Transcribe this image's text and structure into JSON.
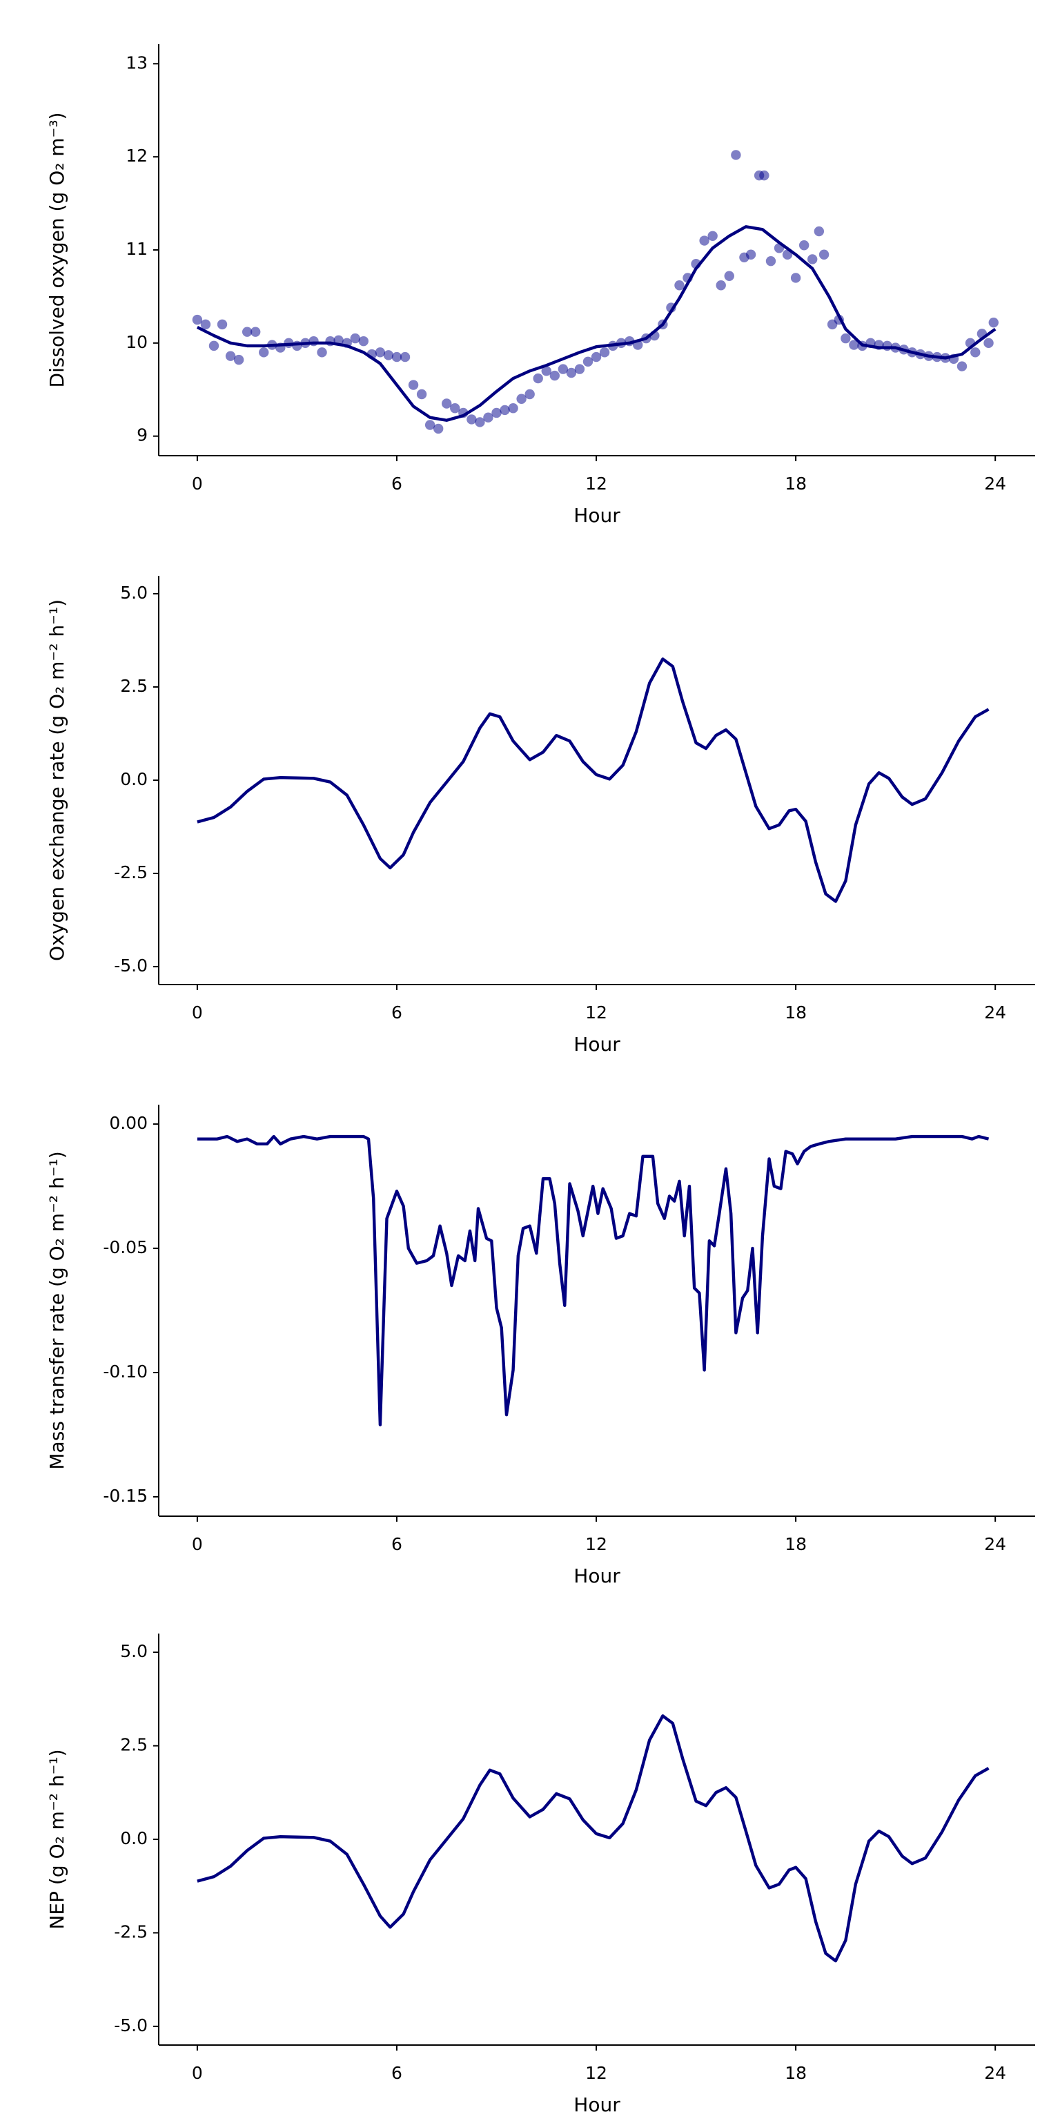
{
  "chart_data": [
    {
      "type": "scatter",
      "x_label": "Hour",
      "y_label": "Dissolved oxygen (g O₂ m⁻³)",
      "xlim": [
        -1.16,
        25.2
      ],
      "ylim": [
        8.79,
        13.21
      ],
      "xticks": [
        0,
        6,
        12,
        18,
        24
      ],
      "yticks": [
        9,
        10,
        11,
        12,
        13
      ],
      "series": [
        {
          "type": "scatter",
          "color": "#00008b",
          "alpha": 0.5,
          "x": [
            0,
            0.25,
            0.5,
            0.75,
            1,
            1.25,
            1.5,
            1.75,
            2,
            2.25,
            2.5,
            2.75,
            3,
            3.25,
            3.5,
            3.75,
            4,
            4.25,
            4.5,
            4.75,
            5,
            5.25,
            5.5,
            5.75,
            6,
            6.25,
            6.5,
            6.75,
            7,
            7.25,
            7.5,
            7.75,
            8,
            8.25,
            8.5,
            8.75,
            9,
            9.25,
            9.5,
            9.75,
            10,
            10.25,
            10.5,
            10.75,
            11,
            11.25,
            11.5,
            11.75,
            12,
            12.25,
            12.5,
            12.75,
            13,
            13.25,
            13.5,
            13.75,
            14,
            14.25,
            14.5,
            14.75,
            15,
            15.25,
            15.5,
            15.75,
            16,
            16.2,
            16.45,
            16.65,
            16.9,
            17.05,
            17.25,
            17.5,
            17.75,
            18,
            18.25,
            18.5,
            18.7,
            18.85,
            19.1,
            19.3,
            19.5,
            19.75,
            20,
            20.25,
            20.5,
            20.75,
            21,
            21.25,
            21.5,
            21.75,
            22,
            22.25,
            22.5,
            22.75,
            23,
            23.25,
            23.4,
            23.6,
            23.8,
            23.95
          ],
          "values": [
            10.25,
            10.2,
            9.97,
            10.2,
            9.86,
            9.82,
            10.12,
            10.12,
            9.9,
            9.98,
            9.95,
            10.0,
            9.97,
            10.0,
            10.02,
            9.9,
            10.02,
            10.03,
            10.0,
            10.05,
            10.02,
            9.88,
            9.9,
            9.87,
            9.85,
            9.85,
            9.55,
            9.45,
            9.12,
            9.08,
            9.35,
            9.3,
            9.25,
            9.18,
            9.15,
            9.2,
            9.25,
            9.28,
            9.3,
            9.4,
            9.45,
            9.62,
            9.7,
            9.65,
            9.72,
            9.68,
            9.72,
            9.8,
            9.85,
            9.9,
            9.97,
            10.0,
            10.02,
            9.98,
            10.05,
            10.08,
            10.2,
            10.38,
            10.62,
            10.7,
            10.85,
            11.1,
            11.15,
            10.62,
            10.72,
            12.02,
            10.92,
            10.95,
            11.8,
            11.8,
            10.88,
            11.02,
            10.95,
            10.7,
            11.05,
            10.9,
            11.2,
            10.95,
            10.2,
            10.25,
            10.05,
            9.98,
            9.97,
            10.0,
            9.98,
            9.97,
            9.95,
            9.93,
            9.9,
            9.88,
            9.86,
            9.85,
            9.84,
            9.83,
            9.75,
            10.0,
            9.9,
            10.1,
            10.0,
            10.22
          ]
        },
        {
          "type": "line",
          "color": "#000080",
          "x": [
            0,
            0.5,
            1,
            1.5,
            2,
            2.5,
            3,
            3.5,
            4,
            4.5,
            5,
            5.5,
            6,
            6.5,
            7,
            7.5,
            8,
            8.5,
            9,
            9.5,
            10,
            10.5,
            11,
            11.5,
            12,
            12.5,
            13,
            13.5,
            14,
            14.5,
            15,
            15.5,
            16,
            16.5,
            17,
            17.5,
            18,
            18.5,
            19,
            19.5,
            20,
            20.5,
            21,
            21.5,
            22,
            22.5,
            23,
            23.5,
            24
          ],
          "values": [
            10.17,
            10.08,
            10.0,
            9.97,
            9.97,
            9.98,
            9.99,
            10.0,
            10.0,
            9.97,
            9.9,
            9.78,
            9.55,
            9.32,
            9.2,
            9.17,
            9.22,
            9.33,
            9.48,
            9.62,
            9.7,
            9.76,
            9.83,
            9.9,
            9.96,
            9.98,
            10.0,
            10.05,
            10.2,
            10.48,
            10.8,
            11.02,
            11.15,
            11.25,
            11.22,
            11.08,
            10.95,
            10.8,
            10.5,
            10.15,
            9.98,
            9.95,
            9.95,
            9.9,
            9.86,
            9.84,
            9.88,
            10.02,
            10.15
          ]
        }
      ]
    },
    {
      "type": "line",
      "x_label": "Hour",
      "y_label": "Oxygen exchange rate (g O₂ m⁻² h⁻¹)",
      "xlim": [
        -1.16,
        25.2
      ],
      "ylim": [
        -5.48,
        5.48
      ],
      "xticks": [
        0,
        6,
        12,
        18,
        24
      ],
      "yticks": [
        {
          "value": -5,
          "label": "-5.0"
        },
        {
          "value": -2.5,
          "label": "-2.5"
        },
        {
          "value": 0,
          "label": "0.0"
        },
        {
          "value": 2.5,
          "label": "2.5"
        },
        {
          "value": 5,
          "label": "5.0"
        }
      ],
      "series": [
        {
          "type": "line",
          "color": "#000080",
          "x": [
            0,
            0.5,
            1,
            1.5,
            2,
            2.5,
            3,
            3.5,
            4,
            4.5,
            5,
            5.5,
            5.8,
            6.2,
            6.5,
            7,
            7.5,
            8,
            8.5,
            8.8,
            9.1,
            9.5,
            10,
            10.4,
            10.8,
            11.2,
            11.6,
            12,
            12.4,
            12.8,
            13.2,
            13.6,
            14,
            14.3,
            14.6,
            15,
            15.3,
            15.6,
            15.9,
            16.2,
            16.5,
            16.8,
            17.2,
            17.5,
            17.8,
            18,
            18.3,
            18.6,
            18.9,
            19.2,
            19.5,
            19.8,
            20.2,
            20.5,
            20.8,
            21.2,
            21.5,
            21.9,
            22.4,
            22.9,
            23.4,
            23.8
          ],
          "values": [
            -1.12,
            -1.0,
            -0.72,
            -0.3,
            0.03,
            0.07,
            0.06,
            0.05,
            -0.05,
            -0.4,
            -1.2,
            -2.1,
            -2.35,
            -2.0,
            -1.4,
            -0.6,
            -0.05,
            0.5,
            1.4,
            1.78,
            1.7,
            1.05,
            0.55,
            0.75,
            1.2,
            1.05,
            0.5,
            0.15,
            0.03,
            0.4,
            1.3,
            2.6,
            3.25,
            3.05,
            2.1,
            1.0,
            0.85,
            1.2,
            1.35,
            1.1,
            0.2,
            -0.7,
            -1.3,
            -1.2,
            -0.82,
            -0.78,
            -1.1,
            -2.2,
            -3.05,
            -3.25,
            -2.7,
            -1.2,
            -0.1,
            0.2,
            0.05,
            -0.45,
            -0.65,
            -0.5,
            0.2,
            1.05,
            1.7,
            1.9
          ]
        }
      ]
    },
    {
      "type": "line",
      "x_label": "Hour",
      "y_label": "Mass transfer rate (g O₂ m⁻² h⁻¹)",
      "xlim": [
        -1.16,
        25.2
      ],
      "ylim": [
        -0.1578,
        0.0078
      ],
      "xticks": [
        0,
        6,
        12,
        18,
        24
      ],
      "yticks": [
        {
          "value": -0.15,
          "label": "-0.15"
        },
        {
          "value": -0.1,
          "label": "-0.10"
        },
        {
          "value": -0.05,
          "label": "-0.05"
        },
        {
          "value": 0,
          "label": "0.00"
        }
      ],
      "series": [
        {
          "type": "line",
          "color": "#000080",
          "x": [
            0,
            0.3,
            0.6,
            0.9,
            1.2,
            1.5,
            1.8,
            2.1,
            2.3,
            2.5,
            2.8,
            3.2,
            3.6,
            4.0,
            4.5,
            5.0,
            5.15,
            5.3,
            5.5,
            5.7,
            6.0,
            6.2,
            6.35,
            6.6,
            6.9,
            7.1,
            7.3,
            7.5,
            7.65,
            7.85,
            8.05,
            8.2,
            8.35,
            8.45,
            8.7,
            8.85,
            9.0,
            9.15,
            9.3,
            9.5,
            9.65,
            9.8,
            10.0,
            10.2,
            10.4,
            10.6,
            10.75,
            10.9,
            11.05,
            11.2,
            11.45,
            11.6,
            11.9,
            12.05,
            12.2,
            12.45,
            12.6,
            12.8,
            13.0,
            13.2,
            13.4,
            13.7,
            13.85,
            14.05,
            14.2,
            14.35,
            14.5,
            14.65,
            14.8,
            14.95,
            15.1,
            15.25,
            15.4,
            15.55,
            15.7,
            15.9,
            16.05,
            16.2,
            16.4,
            16.55,
            16.7,
            16.85,
            17.0,
            17.2,
            17.35,
            17.55,
            17.7,
            17.9,
            18.05,
            18.25,
            18.45,
            18.7,
            19.0,
            19.5,
            20.0,
            20.5,
            21.0,
            21.5,
            22.0,
            22.5,
            23.0,
            23.3,
            23.5,
            23.8
          ],
          "values": [
            -0.006,
            -0.006,
            -0.006,
            -0.005,
            -0.007,
            -0.006,
            -0.008,
            -0.008,
            -0.005,
            -0.008,
            -0.006,
            -0.005,
            -0.006,
            -0.005,
            -0.005,
            -0.005,
            -0.006,
            -0.03,
            -0.121,
            -0.038,
            -0.027,
            -0.033,
            -0.05,
            -0.056,
            -0.055,
            -0.053,
            -0.041,
            -0.052,
            -0.065,
            -0.053,
            -0.055,
            -0.043,
            -0.055,
            -0.034,
            -0.046,
            -0.047,
            -0.074,
            -0.082,
            -0.117,
            -0.099,
            -0.053,
            -0.042,
            -0.041,
            -0.052,
            -0.022,
            -0.022,
            -0.032,
            -0.056,
            -0.073,
            -0.024,
            -0.035,
            -0.045,
            -0.025,
            -0.036,
            -0.026,
            -0.034,
            -0.046,
            -0.045,
            -0.036,
            -0.037,
            -0.013,
            -0.013,
            -0.032,
            -0.038,
            -0.029,
            -0.031,
            -0.023,
            -0.045,
            -0.025,
            -0.066,
            -0.068,
            -0.099,
            -0.047,
            -0.049,
            -0.036,
            -0.018,
            -0.036,
            -0.084,
            -0.07,
            -0.067,
            -0.05,
            -0.084,
            -0.045,
            -0.014,
            -0.025,
            -0.026,
            -0.011,
            -0.012,
            -0.016,
            -0.011,
            -0.009,
            -0.008,
            -0.007,
            -0.006,
            -0.006,
            -0.006,
            -0.006,
            -0.005,
            -0.005,
            -0.005,
            -0.005,
            -0.006,
            -0.005,
            -0.006
          ]
        }
      ]
    },
    {
      "type": "line",
      "x_label": "Hour",
      "y_label": "NEP (g O₂ m⁻² h⁻¹)",
      "xlim": [
        -1.16,
        25.2
      ],
      "ylim": [
        -5.5,
        5.5
      ],
      "xticks": [
        0,
        6,
        12,
        18,
        24
      ],
      "yticks": [
        {
          "value": -5,
          "label": "-5.0"
        },
        {
          "value": -2.5,
          "label": "-2.5"
        },
        {
          "value": 0,
          "label": "0.0"
        },
        {
          "value": 2.5,
          "label": "2.5"
        },
        {
          "value": 5,
          "label": "5.0"
        }
      ],
      "series": [
        {
          "type": "line",
          "color": "#000080",
          "x": [
            0,
            0.5,
            1,
            1.5,
            2,
            2.5,
            3,
            3.5,
            4,
            4.5,
            5,
            5.5,
            5.8,
            6.2,
            6.5,
            7,
            7.5,
            8,
            8.5,
            8.8,
            9.1,
            9.5,
            10,
            10.4,
            10.8,
            11.2,
            11.6,
            12,
            12.4,
            12.8,
            13.2,
            13.6,
            14,
            14.3,
            14.6,
            15,
            15.3,
            15.6,
            15.9,
            16.2,
            16.5,
            16.8,
            17.2,
            17.5,
            17.8,
            18,
            18.3,
            18.6,
            18.9,
            19.2,
            19.5,
            19.8,
            20.2,
            20.5,
            20.8,
            21.2,
            21.5,
            21.9,
            22.4,
            22.9,
            23.4,
            23.8
          ],
          "values": [
            -1.12,
            -1.0,
            -0.72,
            -0.3,
            0.03,
            0.07,
            0.06,
            0.05,
            -0.05,
            -0.4,
            -1.2,
            -2.05,
            -2.35,
            -2.0,
            -1.4,
            -0.55,
            0.0,
            0.55,
            1.45,
            1.85,
            1.75,
            1.1,
            0.6,
            0.8,
            1.22,
            1.08,
            0.52,
            0.15,
            0.04,
            0.42,
            1.32,
            2.65,
            3.3,
            3.1,
            2.15,
            1.02,
            0.9,
            1.25,
            1.38,
            1.12,
            0.22,
            -0.7,
            -1.3,
            -1.2,
            -0.82,
            -0.75,
            -1.05,
            -2.2,
            -3.05,
            -3.25,
            -2.7,
            -1.2,
            -0.05,
            0.22,
            0.07,
            -0.45,
            -0.65,
            -0.5,
            0.2,
            1.05,
            1.7,
            1.9
          ]
        }
      ]
    }
  ]
}
